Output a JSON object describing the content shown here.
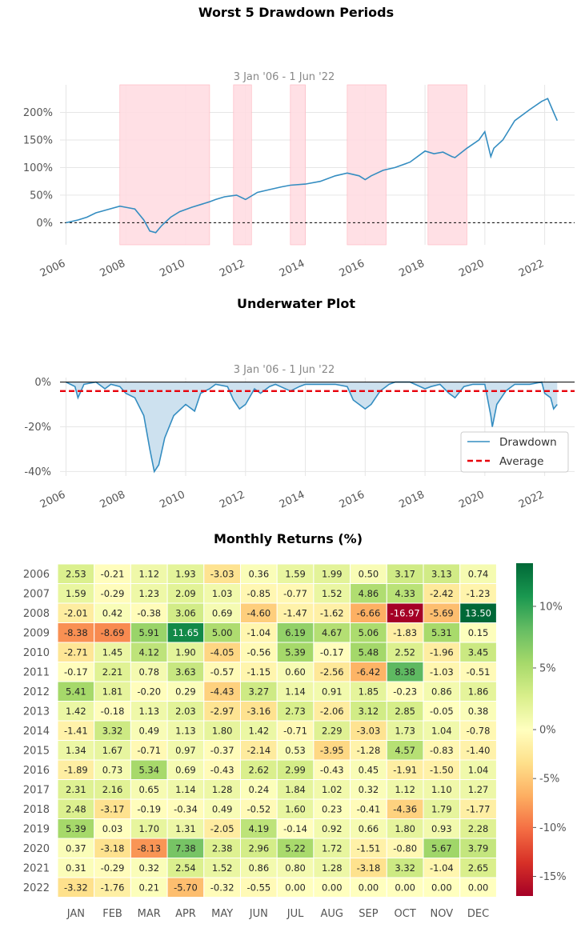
{
  "chart_data": [
    {
      "type": "line",
      "title": "Worst 5 Drawdown Periods",
      "subtitle": "3 Jan '06 -  1 Jun '22",
      "color": "#348dc1",
      "shade_color": "#ffdbe0",
      "xlim": [
        2005.8,
        2023.0
      ],
      "ylim": [
        -40,
        250
      ],
      "yticks": [
        0,
        50,
        100,
        150,
        200
      ],
      "ytick_labels": [
        "0%",
        "50%",
        "100%",
        "150%",
        "200%"
      ],
      "xticks": [
        2006,
        2008,
        2010,
        2012,
        2014,
        2016,
        2018,
        2020,
        2022
      ],
      "xtick_labels": [
        "2006",
        "2008",
        "2010",
        "2012",
        "2014",
        "2016",
        "2018",
        "2020",
        "2022"
      ],
      "baseline": 0,
      "drawdown_periods": [
        [
          2007.8,
          2010.8
        ],
        [
          2011.6,
          2012.2
        ],
        [
          2013.5,
          2014.0
        ],
        [
          2015.4,
          2016.7
        ],
        [
          2018.1,
          2019.4
        ]
      ],
      "series": [
        {
          "x": [
            2006.0,
            2006.4,
            2006.7,
            2007.0,
            2007.4,
            2007.8,
            2008.0,
            2008.3,
            2008.6,
            2008.8,
            2009.0,
            2009.2,
            2009.5,
            2009.8,
            2010.2,
            2010.5,
            2010.8,
            2011.0,
            2011.3,
            2011.7,
            2012.0,
            2012.4,
            2012.8,
            2013.2,
            2013.5,
            2014.0,
            2014.5,
            2015.0,
            2015.4,
            2015.8,
            2016.0,
            2016.2,
            2016.6,
            2017.0,
            2017.5,
            2018.0,
            2018.3,
            2018.6,
            2018.9,
            2019.0,
            2019.4,
            2019.8,
            2020.0,
            2020.2,
            2020.3,
            2020.6,
            2021.0,
            2021.5,
            2021.9,
            2022.1,
            2022.3,
            2022.42
          ],
          "y": [
            0,
            5,
            10,
            18,
            24,
            30,
            28,
            25,
            5,
            -15,
            -18,
            -5,
            10,
            20,
            28,
            33,
            38,
            42,
            47,
            50,
            42,
            55,
            60,
            65,
            68,
            70,
            75,
            85,
            90,
            85,
            78,
            85,
            95,
            100,
            110,
            130,
            125,
            128,
            120,
            118,
            135,
            150,
            165,
            120,
            135,
            150,
            185,
            205,
            220,
            225,
            200,
            185
          ]
        }
      ]
    },
    {
      "type": "area",
      "title": "Underwater Plot",
      "subtitle": "3 Jan '06 -  1 Jun '22",
      "xlim": [
        2005.8,
        2023.0
      ],
      "ylim": [
        -42,
        2
      ],
      "yticks": [
        0,
        -20,
        -40
      ],
      "ytick_labels": [
        "0%",
        "-20%",
        "-40%"
      ],
      "xticks": [
        2006,
        2008,
        2010,
        2012,
        2014,
        2016,
        2018,
        2020,
        2022
      ],
      "xtick_labels": [
        "2006",
        "2008",
        "2010",
        "2012",
        "2014",
        "2016",
        "2018",
        "2020",
        "2022"
      ],
      "average": -4,
      "legend": {
        "position": "lower-right",
        "entries": [
          "Drawdown",
          "Average"
        ]
      },
      "line_color": "#348dc1",
      "fill_color": "#cde1ef",
      "average_color": "#e8000b",
      "series": [
        {
          "name": "Drawdown",
          "x": [
            2006.0,
            2006.3,
            2006.4,
            2006.6,
            2007.0,
            2007.3,
            2007.5,
            2007.8,
            2008.0,
            2008.3,
            2008.6,
            2008.8,
            2008.95,
            2009.1,
            2009.3,
            2009.6,
            2010.0,
            2010.3,
            2010.5,
            2010.8,
            2011.0,
            2011.4,
            2011.6,
            2011.8,
            2012.0,
            2012.3,
            2012.5,
            2012.8,
            2013.0,
            2013.5,
            2013.8,
            2014.0,
            2014.5,
            2015.0,
            2015.4,
            2015.6,
            2016.0,
            2016.2,
            2016.5,
            2016.8,
            2017.0,
            2017.5,
            2018.0,
            2018.2,
            2018.5,
            2018.8,
            2019.0,
            2019.3,
            2019.6,
            2020.0,
            2020.2,
            2020.25,
            2020.4,
            2020.7,
            2021.0,
            2021.5,
            2021.9,
            2022.0,
            2022.2,
            2022.3,
            2022.42
          ],
          "y": [
            0,
            -2,
            -7,
            -1,
            0,
            -3,
            -1,
            -2,
            -5,
            -7,
            -15,
            -30,
            -40,
            -37,
            -25,
            -15,
            -10,
            -13,
            -5,
            -3,
            -1,
            -2,
            -8,
            -12,
            -10,
            -3,
            -5,
            -2,
            -1,
            -4,
            -2,
            -1,
            -1,
            -1,
            -2,
            -8,
            -12,
            -10,
            -4,
            -1,
            0,
            0,
            -3,
            -2,
            -1,
            -5,
            -7,
            -2,
            -1,
            -1,
            -15,
            -20,
            -10,
            -4,
            -1,
            -1,
            0,
            -5,
            -7,
            -12,
            -10
          ]
        }
      ]
    },
    {
      "type": "heatmap",
      "title": "Monthly Returns (%)",
      "columns": [
        "JAN",
        "FEB",
        "MAR",
        "APR",
        "MAY",
        "JUN",
        "JUL",
        "AUG",
        "SEP",
        "OCT",
        "NOV",
        "DEC"
      ],
      "rows": [
        "2006",
        "2007",
        "2008",
        "2009",
        "2010",
        "2011",
        "2012",
        "2013",
        "2014",
        "2015",
        "2016",
        "2017",
        "2018",
        "2019",
        "2020",
        "2021",
        "2022"
      ],
      "values": [
        [
          "2.53",
          "-0.21",
          "1.12",
          "1.93",
          "-3.03",
          "0.36",
          "1.59",
          "1.99",
          "0.50",
          "3.17",
          "3.13",
          "0.74"
        ],
        [
          "1.59",
          "-0.29",
          "1.23",
          "2.09",
          "1.03",
          "-0.85",
          "-0.77",
          "1.52",
          "4.86",
          "4.33",
          "-2.42",
          "-1.23"
        ],
        [
          "-2.01",
          "0.42",
          "-0.38",
          "3.06",
          "0.69",
          "-4.60",
          "-1.47",
          "-1.62",
          "-6.66",
          "-16.97",
          "-5.69",
          "13.50"
        ],
        [
          "-8.38",
          "-8.69",
          "5.91",
          "11.65",
          "5.00",
          "-1.04",
          "6.19",
          "4.67",
          "5.06",
          "-1.83",
          "5.31",
          "0.15"
        ],
        [
          "-2.71",
          "1.45",
          "4.12",
          "1.90",
          "-4.05",
          "-0.56",
          "5.39",
          "-0.17",
          "5.48",
          "2.52",
          "-1.96",
          "3.45"
        ],
        [
          "-0.17",
          "2.21",
          "0.78",
          "3.63",
          "-0.57",
          "-1.15",
          "0.60",
          "-2.56",
          "-6.42",
          "8.38",
          "-1.03",
          "-0.51"
        ],
        [
          "5.41",
          "1.81",
          "-0.20",
          "0.29",
          "-4.43",
          "3.27",
          "1.14",
          "0.91",
          "1.85",
          "-0.23",
          "0.86",
          "1.86"
        ],
        [
          "1.42",
          "-0.18",
          "1.13",
          "2.03",
          "-2.97",
          "-3.16",
          "2.73",
          "-2.06",
          "3.12",
          "2.85",
          "-0.05",
          "0.38"
        ],
        [
          "-1.41",
          "3.32",
          "0.49",
          "1.13",
          "1.80",
          "1.42",
          "-0.71",
          "2.29",
          "-3.03",
          "1.73",
          "1.04",
          "-0.78"
        ],
        [
          "1.34",
          "1.67",
          "-0.71",
          "0.97",
          "-0.37",
          "-2.14",
          "0.53",
          "-3.95",
          "-1.28",
          "4.57",
          "-0.83",
          "-1.40"
        ],
        [
          "-1.89",
          "0.73",
          "5.34",
          "0.69",
          "-0.43",
          "2.62",
          "2.99",
          "-0.43",
          "0.45",
          "-1.91",
          "-1.50",
          "1.04"
        ],
        [
          "2.31",
          "2.16",
          "0.65",
          "1.14",
          "1.28",
          "0.24",
          "1.84",
          "1.02",
          "0.32",
          "1.12",
          "1.10",
          "1.27"
        ],
        [
          "2.48",
          "-3.17",
          "-0.19",
          "-0.34",
          "0.49",
          "-0.52",
          "1.60",
          "0.23",
          "-0.41",
          "-4.36",
          "1.79",
          "-1.77"
        ],
        [
          "5.39",
          "0.03",
          "1.70",
          "1.31",
          "-2.05",
          "4.19",
          "-0.14",
          "0.92",
          "0.66",
          "1.80",
          "0.93",
          "2.28"
        ],
        [
          "0.37",
          "-3.18",
          "-8.13",
          "7.38",
          "2.38",
          "2.96",
          "5.22",
          "1.72",
          "-1.51",
          "-0.80",
          "5.67",
          "3.79"
        ],
        [
          "0.31",
          "-0.29",
          "0.32",
          "2.54",
          "1.52",
          "0.86",
          "0.80",
          "1.28",
          "-3.18",
          "3.32",
          "-1.04",
          "2.65"
        ],
        [
          "-3.32",
          "-1.76",
          "0.21",
          "-5.70",
          "-0.32",
          "-0.55",
          "0.00",
          "0.00",
          "0.00",
          "0.00",
          "0.00",
          "0.00"
        ]
      ],
      "colorbar": {
        "range": [
          -17,
          13.5
        ],
        "ticks": [
          10,
          5,
          0,
          -5,
          -10,
          -15
        ],
        "tick_labels": [
          "10%",
          "5%",
          "0%",
          "-5%",
          "-10%",
          "-15%"
        ],
        "colormap": "RdYlGn"
      }
    }
  ]
}
